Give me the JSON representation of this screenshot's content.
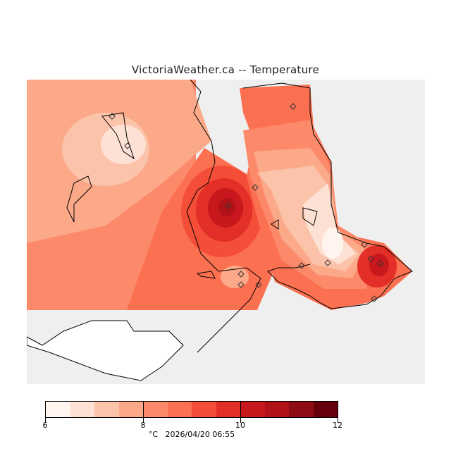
{
  "title": "VictoriaWeather.ca -- Temperature",
  "colorbar": {
    "unit": "°C",
    "timestamp": "2026/04/20 06:55",
    "ticks": [
      "6",
      "8",
      "10",
      "12"
    ],
    "min": 6,
    "max": 12,
    "colors": [
      "#fff4ee",
      "#fee1d5",
      "#fcc3ab",
      "#fca98a",
      "#fc8a6a",
      "#fb7050",
      "#f44d38",
      "#e32f27",
      "#c9181d",
      "#b11218",
      "#8e0c14",
      "#67000d"
    ]
  },
  "colors": {
    "background": "#efefef",
    "land_no_data": "#ffffff",
    "coast": "#000000"
  },
  "stations_count": 14
}
